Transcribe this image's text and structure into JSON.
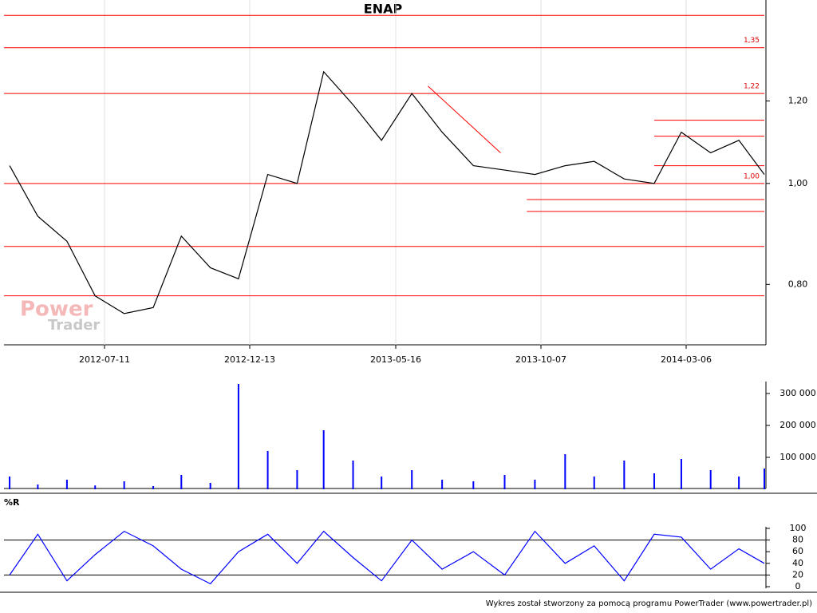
{
  "chart_data": [
    {
      "type": "line",
      "title": "ENAP",
      "watermark": [
        "Power",
        "Trader"
      ],
      "x": [
        "2012-04-01",
        "2012-05-01",
        "2012-06-01",
        "2012-07-01",
        "2012-08-01",
        "2012-09-01",
        "2012-10-01",
        "2012-11-01",
        "2012-12-01",
        "2013-01-01",
        "2013-02-01",
        "2013-03-01",
        "2013-04-01",
        "2013-05-01",
        "2013-06-01",
        "2013-07-01",
        "2013-08-01",
        "2013-09-01",
        "2013-10-01",
        "2013-11-01",
        "2013-12-01",
        "2014-01-01",
        "2014-02-01",
        "2014-03-01",
        "2014-04-01",
        "2014-05-01",
        "2014-05-28"
      ],
      "series": [
        {
          "color": "#000000",
          "values": [
            1.04,
            0.93,
            0.88,
            0.78,
            0.75,
            0.76,
            0.89,
            0.83,
            0.81,
            1.02,
            1.0,
            1.28,
            1.19,
            1.1,
            1.22,
            1.12,
            1.04,
            1.03,
            1.02,
            1.04,
            1.05,
            1.01,
            1.0,
            1.12,
            1.07,
            1.1,
            1.02
          ]
        }
      ],
      "ylim": [
        0.7,
        1.5
      ],
      "log_scale": true,
      "yticks": [
        {
          "value": 0.8,
          "label": "0,80"
        },
        {
          "value": 1.0,
          "label": "1,00"
        },
        {
          "value": 1.2,
          "label": "1,20"
        }
      ],
      "xlim": [
        "2012-03-26",
        "2014-05-28"
      ],
      "xticks": [
        "2012-07-11",
        "2012-12-13",
        "2013-05-16",
        "2013-10-07",
        "2014-03-06"
      ],
      "levels": [
        {
          "value": 1.45
        },
        {
          "value": 1.35,
          "label": "1,35"
        },
        {
          "value": 1.22,
          "label": "1,22"
        },
        {
          "value": 1.0,
          "label": "1,00"
        },
        {
          "value": 0.87
        },
        {
          "value": 0.78
        },
        {
          "value": 1.15,
          "start": "2014-02-01"
        },
        {
          "value": 1.11,
          "start": "2014-02-01"
        },
        {
          "value": 1.04,
          "start": "2014-02-01"
        },
        {
          "value": 0.965,
          "start": "2013-09-23"
        },
        {
          "value": 0.94,
          "start": "2013-09-23"
        }
      ],
      "segments": [
        {
          "start": "2013-06-17",
          "end": "2013-08-28",
          "values": [
            1.24,
            1.07
          ]
        }
      ],
      "level_color": "#ff0000"
    },
    {
      "type": "bar",
      "x": [
        "2012-04-01",
        "2012-05-01",
        "2012-06-01",
        "2012-07-01",
        "2012-08-01",
        "2012-09-01",
        "2012-10-01",
        "2012-11-01",
        "2012-12-01",
        "2013-01-01",
        "2013-02-01",
        "2013-03-01",
        "2013-04-01",
        "2013-05-01",
        "2013-06-01",
        "2013-07-01",
        "2013-08-01",
        "2013-09-01",
        "2013-10-01",
        "2013-11-01",
        "2013-12-01",
        "2014-01-01",
        "2014-02-01",
        "2014-03-01",
        "2014-04-01",
        "2014-05-01",
        "2014-05-28"
      ],
      "values": [
        40000,
        15000,
        30000,
        12000,
        25000,
        10000,
        45000,
        20000,
        330000,
        120000,
        60000,
        185000,
        90000,
        40000,
        60000,
        30000,
        25000,
        45000,
        30000,
        110000,
        40000,
        90000,
        50000,
        95000,
        60000,
        40000,
        65000
      ],
      "color": "#0000ff",
      "ylim": [
        0,
        332500
      ],
      "yticks": [
        {
          "value": 100000,
          "label": "100 000"
        },
        {
          "value": 200000,
          "label": "200 000"
        },
        {
          "value": 300000,
          "label": "300 000"
        }
      ]
    },
    {
      "type": "line",
      "title": "%R",
      "x": [
        "2012-04-01",
        "2012-05-01",
        "2012-06-01",
        "2012-07-01",
        "2012-08-01",
        "2012-09-01",
        "2012-10-01",
        "2012-11-01",
        "2012-12-01",
        "2013-01-01",
        "2013-02-01",
        "2013-03-01",
        "2013-04-01",
        "2013-05-01",
        "2013-06-01",
        "2013-07-01",
        "2013-08-01",
        "2013-09-01",
        "2013-10-01",
        "2013-11-01",
        "2013-12-01",
        "2014-01-01",
        "2014-02-01",
        "2014-03-01",
        "2014-04-01",
        "2014-05-01",
        "2014-05-28"
      ],
      "series": [
        {
          "color": "#0000ff",
          "values": [
            20,
            90,
            10,
            55,
            95,
            70,
            30,
            5,
            60,
            90,
            40,
            95,
            50,
            10,
            80,
            30,
            60,
            20,
            95,
            40,
            70,
            10,
            90,
            85,
            30,
            65,
            40
          ]
        }
      ],
      "ylim": [
        0,
        100
      ],
      "yticks": [
        0,
        20,
        40,
        60,
        80,
        100
      ],
      "reference_lines": [
        20,
        80
      ]
    }
  ],
  "footer": "Wykres został stworzony za pomocą programu PowerTrader (www.powertrader.pl)"
}
